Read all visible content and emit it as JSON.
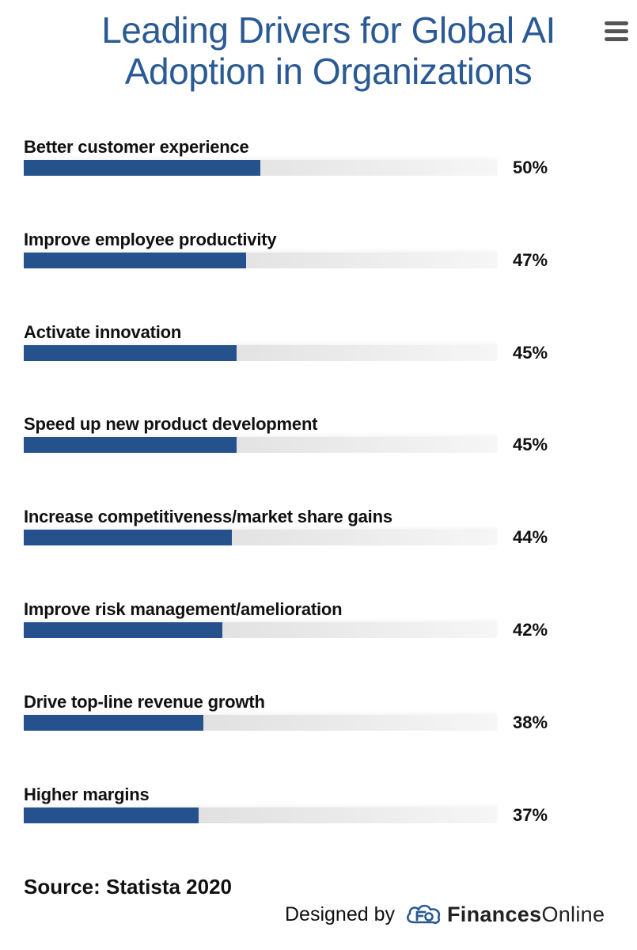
{
  "header": {
    "title": "Leading Drivers for Global AI Adoption in Organizations",
    "menu_icon": "hamburger-menu-icon"
  },
  "chart_data": {
    "type": "bar",
    "orientation": "horizontal",
    "title": "Leading Drivers for Global AI Adoption in Organizations",
    "xlabel": "",
    "ylabel": "",
    "xlim": [
      0,
      100
    ],
    "value_suffix": "%",
    "categories": [
      "Better customer experience",
      "Improve employee productivity",
      "Activate innovation",
      "Speed up new product development",
      "Increase competitiveness/market share gains",
      "Improve risk management/amelioration",
      "Drive top-line revenue growth",
      "Higher margins"
    ],
    "values": [
      50,
      47,
      45,
      45,
      44,
      42,
      38,
      37
    ],
    "value_labels": [
      "50%",
      "47%",
      "45%",
      "45%",
      "44%",
      "42%",
      "38%",
      "37%"
    ],
    "bar_color": "#25528c",
    "track_color": "#e3e3e3",
    "grid": false
  },
  "footer": {
    "source": "Source: Statista 2020",
    "credit_prefix": "Designed by",
    "brand_bold": "Finances",
    "brand_light": "Online",
    "brand_color": "#2a5a94"
  }
}
